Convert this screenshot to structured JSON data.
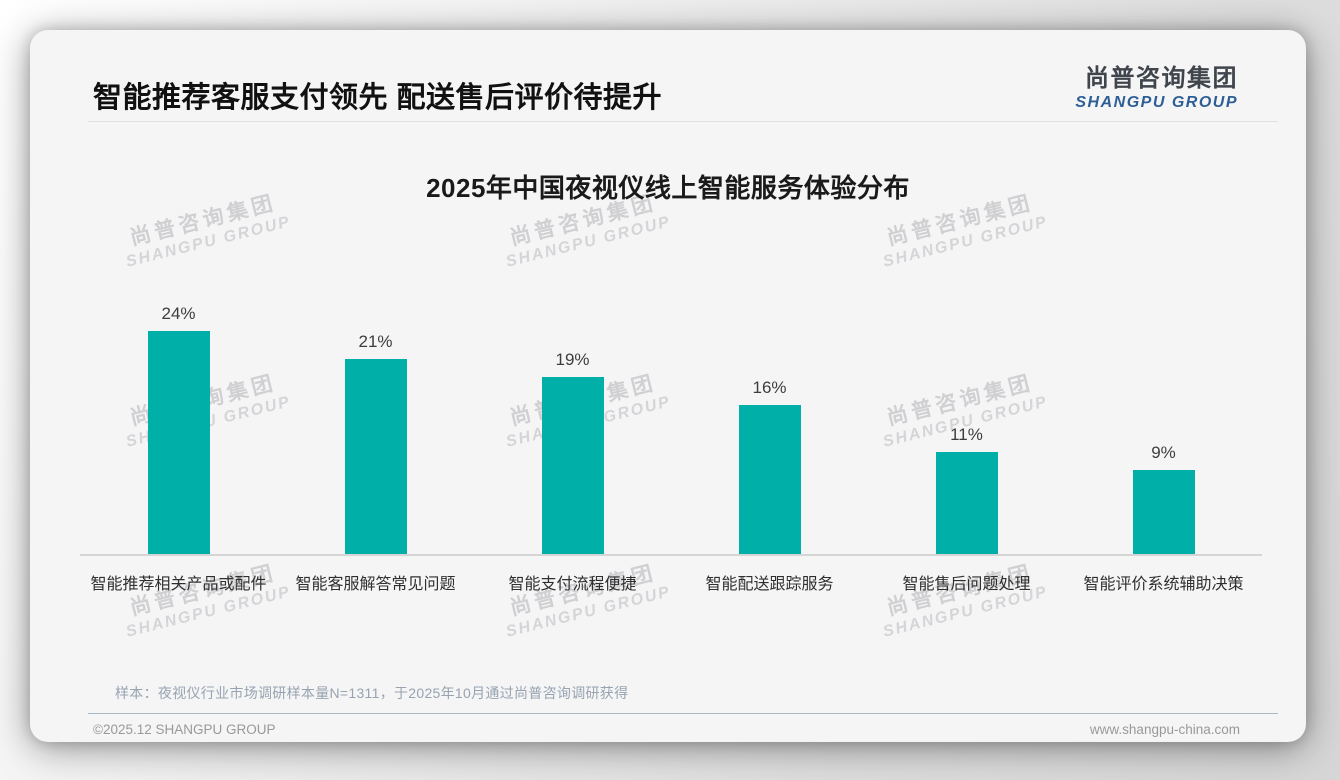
{
  "page": {
    "title": "智能推荐客服支付领先 配送售后评价待提升",
    "logo": {
      "cn": "尚普咨询集团",
      "en": "SHANGPU GROUP"
    },
    "watermark": {
      "cn": "尚普咨询集团",
      "en": "SHANGPU GROUP"
    },
    "footnote": "样本：夜视仪行业市场调研样本量N=1311，于2025年10月通过尚普咨询调研获得",
    "footer": {
      "left": "©2025.12 SHANGPU GROUP",
      "right": "www.shangpu-china.com"
    },
    "colors": {
      "bar_teal": "#00b0a8",
      "logo_blue": "#2d5e96",
      "headline_text": "#111111",
      "footnote_text": "#97a3b1",
      "axis_line": "#d5d5d5"
    }
  },
  "chart_data": {
    "type": "bar",
    "title": "2025年中国夜视仪线上智能服务体验分布",
    "categories": [
      "智能推荐相关产品或配件",
      "智能客服解答常见问题",
      "智能支付流程便捷",
      "智能配送跟踪服务",
      "智能售后问题处理",
      "智能评价系统辅助决策"
    ],
    "values": [
      24,
      21,
      19,
      16,
      11,
      9
    ],
    "value_labels": [
      "24%",
      "21%",
      "19%",
      "16%",
      "11%",
      "9%"
    ],
    "unit": "%",
    "xlabel": "",
    "ylabel": "",
    "ylim": [
      0,
      26
    ],
    "grid": false,
    "legend": "none",
    "bar_color": "#00b0a8"
  }
}
